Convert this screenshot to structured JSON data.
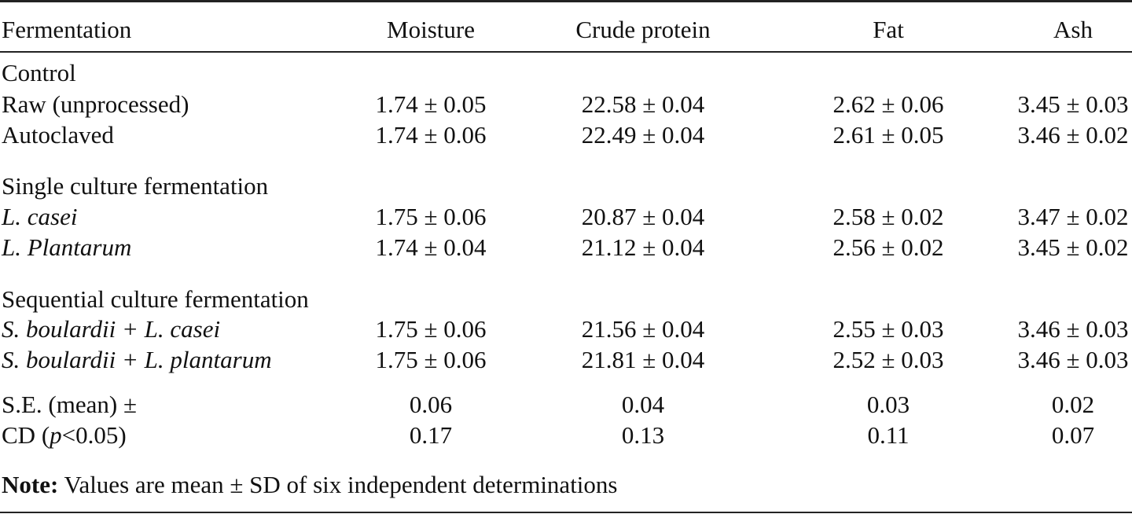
{
  "header": {
    "col0": "Fermentation",
    "col1": "Moisture",
    "col2": "Crude protein",
    "col3": "Fat",
    "col4": "Ash"
  },
  "groups": {
    "control": "Control",
    "single": "Single culture fermentation",
    "sequential": "Sequential culture fermentation"
  },
  "rows": [
    {
      "label": "Raw (unprocessed)",
      "moisture": "1.74 ± 0.05",
      "protein": "22.58 ± 0.04",
      "fat": "2.62 ± 0.06",
      "ash": "3.45 ± 0.03"
    },
    {
      "label": "Autoclaved",
      "moisture": "1.74 ± 0.06",
      "protein": "22.49 ± 0.04",
      "fat": "2.61 ± 0.05",
      "ash": "3.46 ± 0.02"
    },
    {
      "label": "L. casei",
      "moisture": "1.75 ± 0.06",
      "protein": "20.87 ± 0.04",
      "fat": "2.58 ± 0.02",
      "ash": "3.47 ± 0.02"
    },
    {
      "label": "L. Plantarum",
      "moisture": "1.74 ± 0.04",
      "protein": "21.12 ± 0.04",
      "fat": "2.56 ± 0.02",
      "ash": "3.45 ± 0.02"
    },
    {
      "label": "S. boulardii + L. casei",
      "moisture": "1.75 ± 0.06",
      "protein": "21.56 ± 0.04",
      "fat": "2.55 ± 0.03",
      "ash": "3.46 ± 0.03"
    },
    {
      "label": "S. boulardii + L. plantarum",
      "moisture": "1.75 ± 0.06",
      "protein": "21.81 ± 0.04",
      "fat": "2.52 ± 0.03",
      "ash": "3.46 ± 0.03"
    }
  ],
  "stats": [
    {
      "label": "S.E. (mean) ±",
      "moisture": "0.06",
      "protein": "0.04",
      "fat": "0.03",
      "ash": "0.02"
    },
    {
      "label_pre": "CD (",
      "label_p": "p",
      "label_post": "<0.05)",
      "moisture": "0.17",
      "protein": "0.13",
      "fat": "0.11",
      "ash": "0.07"
    }
  ],
  "note": {
    "bold": "Note:",
    "text": " Values are mean ± SD of six independent determinations"
  }
}
